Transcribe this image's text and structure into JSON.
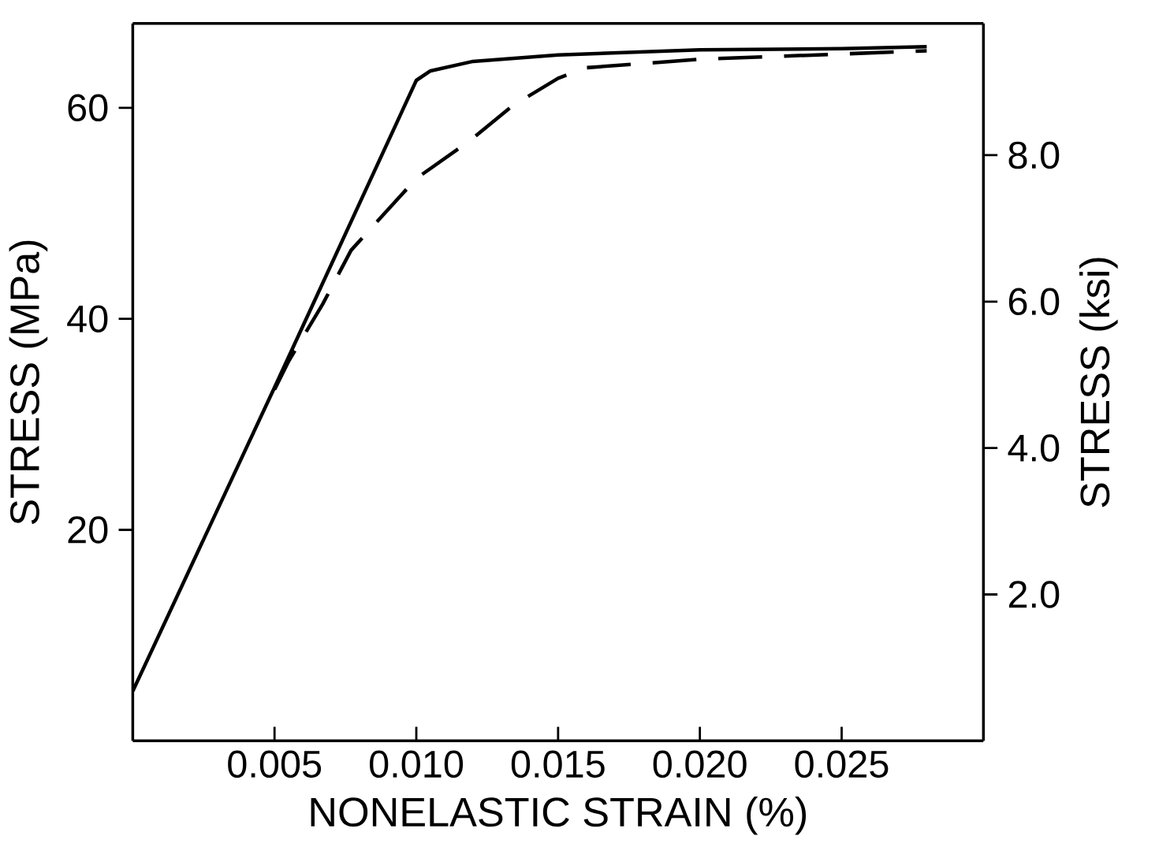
{
  "chart_data": {
    "type": "line",
    "xlabel": "NONELASTIC STRAIN (%)",
    "ylabel": "STRESS (MPa)",
    "y2label": "STRESS (ksi)",
    "xlim": [
      0,
      0.03
    ],
    "ylim": [
      0,
      68
    ],
    "y2lim": [
      0,
      9.8
    ],
    "xticks": [
      {
        "value": 0.005,
        "label": "0.005"
      },
      {
        "value": 0.01,
        "label": "0.010"
      },
      {
        "value": 0.015,
        "label": "0.015"
      },
      {
        "value": 0.02,
        "label": "0.020"
      },
      {
        "value": 0.025,
        "label": "0.025"
      }
    ],
    "yticks": [
      20,
      40,
      60
    ],
    "y2ticks": [
      {
        "value": 2,
        "label": "2.0"
      },
      {
        "value": 4,
        "label": "4.0"
      },
      {
        "value": 6,
        "label": "6.0"
      },
      {
        "value": 8,
        "label": "8.0"
      }
    ],
    "series": [
      {
        "color": "#000000",
        "line_style": "solid",
        "x": [
          0,
          0.005,
          0.01,
          0.0105,
          0.012,
          0.015,
          0.02,
          0.025,
          0.028
        ],
        "values": [
          4.7,
          33.5,
          62.6,
          63.5,
          64.4,
          65.0,
          65.5,
          65.6,
          65.8
        ]
      },
      {
        "color": "#000000",
        "line_style": "dashed",
        "x": [
          0.005,
          0.0055,
          0.0067,
          0.0077,
          0.01,
          0.0119,
          0.0134,
          0.015,
          0.016,
          0.02,
          0.025,
          0.028
        ],
        "values": [
          33.3,
          36.0,
          41.4,
          46.5,
          53.3,
          56.9,
          60.2,
          62.8,
          63.8,
          64.6,
          65.1,
          65.4
        ]
      }
    ]
  }
}
